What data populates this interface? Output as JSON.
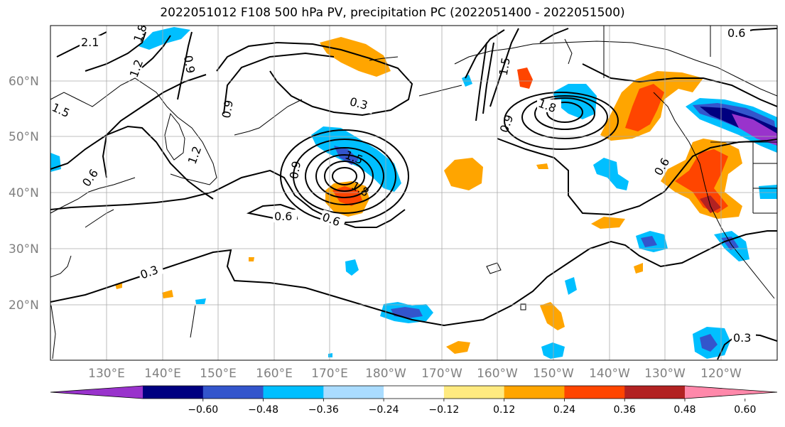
{
  "title": "2022051012 F108 500 hPa PV, precipitation PC (2022051400 - 2022051500)",
  "lat_labels": [
    "60°N",
    "50°N",
    "40°N",
    "30°N",
    "20°N"
  ],
  "lon_labels": [
    "130°E",
    "140°E",
    "150°E",
    "160°E",
    "170°E",
    "180°W",
    "170°W",
    "160°W",
    "150°W",
    "140°W",
    "130°W",
    "120°W"
  ],
  "contour_labels": [
    "2.1",
    "1.8",
    "1.2",
    "0.9",
    "1.5",
    "1.2",
    "0.6",
    "0.9",
    "0.3",
    "1.5",
    "1.8",
    "0.9",
    "0.6",
    "0.6",
    "0.6",
    "1.8",
    "0.9",
    "1.5",
    "0.3",
    "0.6",
    "0.3"
  ],
  "colorbar": {
    "colors": [
      "#9933cc",
      "#000080",
      "#3355cc",
      "#00bfff",
      "#aadcff",
      "#ffffff",
      "#ffea80",
      "#ffa500",
      "#ff4500",
      "#b22222",
      "#ff88aa"
    ],
    "tick_labels": [
      "−0.60",
      "−0.48",
      "−0.36",
      "−0.24",
      "−0.12",
      "0.12",
      "0.24",
      "0.36",
      "0.48",
      "0.60"
    ],
    "extend": "both"
  }
}
